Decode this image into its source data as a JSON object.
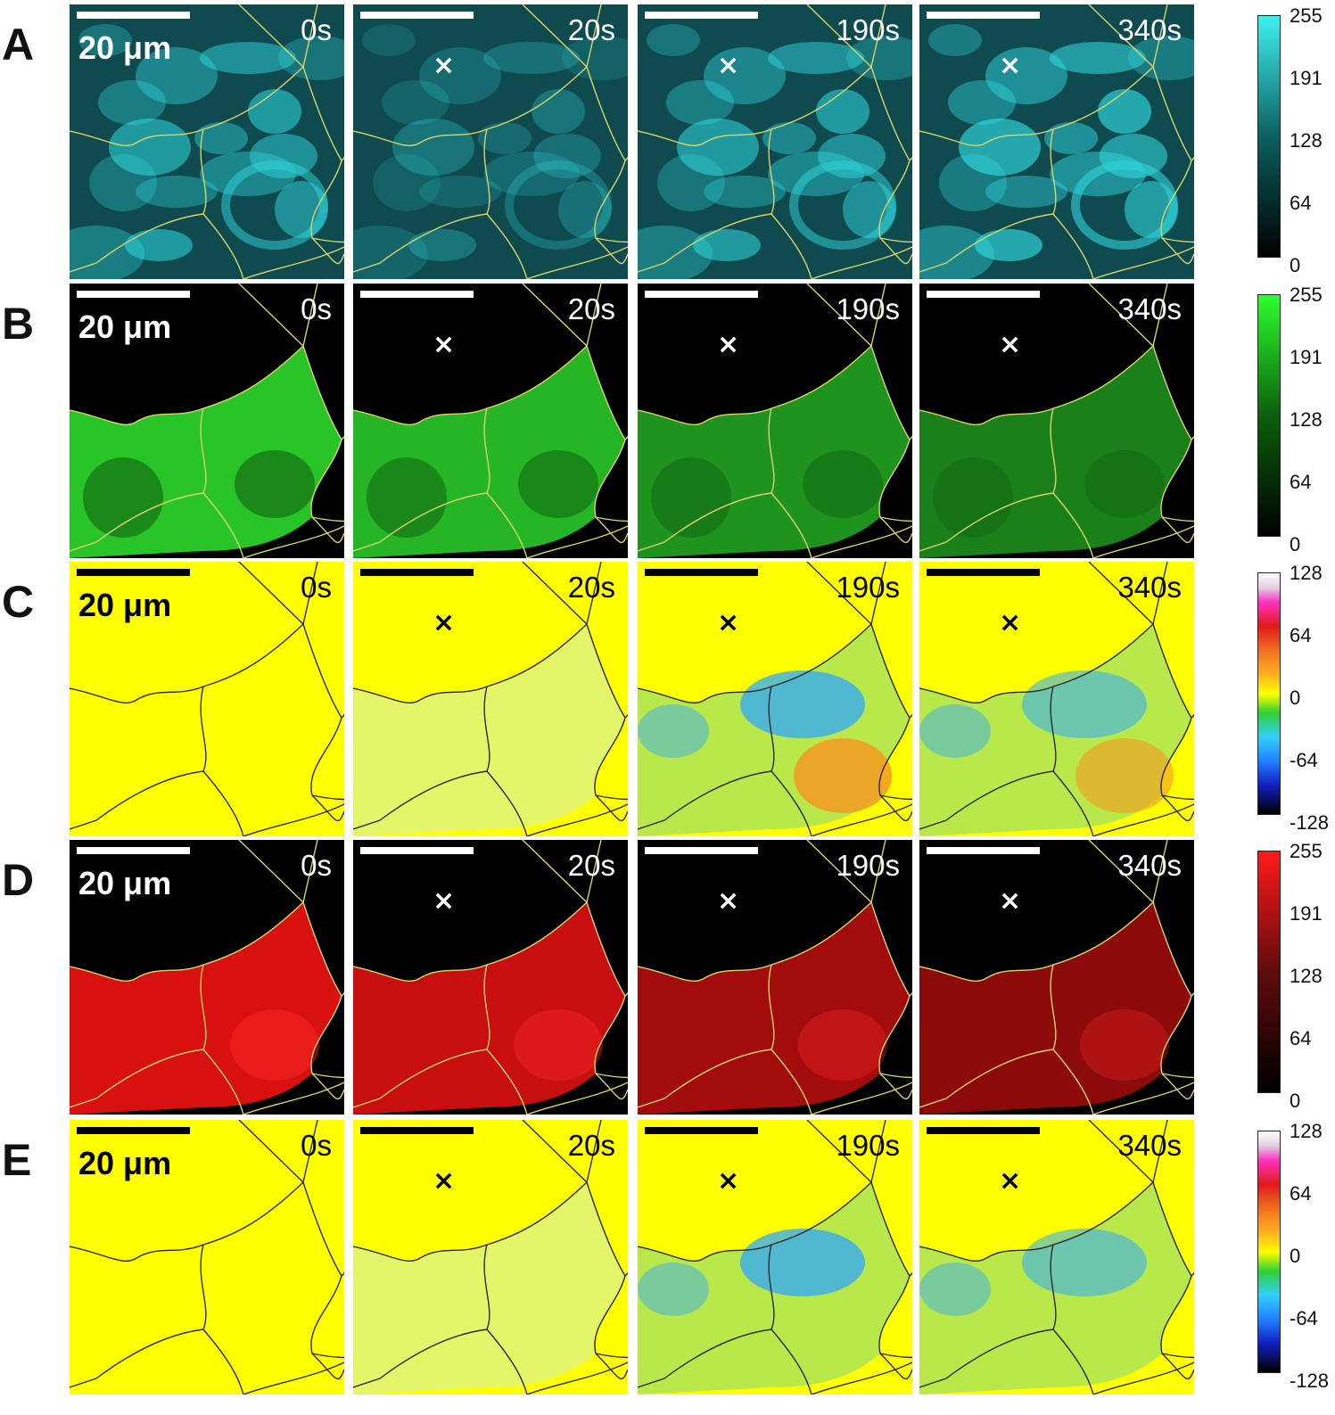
{
  "rows": [
    {
      "label": "A",
      "scale": "20 μm",
      "theme": "dark",
      "bg": "#0f4a4f",
      "signal": "#2fd6dc",
      "outline": "#d8d46a",
      "panels": [
        {
          "time": "0s",
          "marker": ""
        },
        {
          "time": "20s",
          "marker": "×"
        },
        {
          "time": "190s",
          "marker": "×"
        },
        {
          "time": "340s",
          "marker": "×"
        }
      ]
    },
    {
      "label": "B",
      "scale": "20 μm",
      "theme": "dark",
      "bg": "#000000",
      "signal": "#28c428",
      "outline": "#d8d46a",
      "panels": [
        {
          "time": "0s",
          "marker": ""
        },
        {
          "time": "20s",
          "marker": "×"
        },
        {
          "time": "190s",
          "marker": "×"
        },
        {
          "time": "340s",
          "marker": "×"
        }
      ]
    },
    {
      "label": "C",
      "scale": "20 μm",
      "theme": "light",
      "bg": "#ffff00",
      "signal": "#2ea8ff",
      "outline": "#2a2a2a",
      "panels": [
        {
          "time": "0s",
          "marker": ""
        },
        {
          "time": "20s",
          "marker": "×"
        },
        {
          "time": "190s",
          "marker": "×"
        },
        {
          "time": "340s",
          "marker": "×"
        }
      ]
    },
    {
      "label": "D",
      "scale": "20 μm",
      "theme": "dark",
      "bg": "#000000",
      "signal": "#d81010",
      "outline": "#d8d46a",
      "panels": [
        {
          "time": "0s",
          "marker": ""
        },
        {
          "time": "20s",
          "marker": "×"
        },
        {
          "time": "190s",
          "marker": "×"
        },
        {
          "time": "340s",
          "marker": "×"
        }
      ]
    },
    {
      "label": "E",
      "scale": "20 μm",
      "theme": "light",
      "bg": "#ffff00",
      "signal": "#2ea8ff",
      "outline": "#2a2a2a",
      "panels": [
        {
          "time": "0s",
          "marker": ""
        },
        {
          "time": "20s",
          "marker": "×"
        },
        {
          "time": "190s",
          "marker": "×"
        },
        {
          "time": "340s",
          "marker": "×"
        }
      ]
    }
  ],
  "colorbars": [
    {
      "name": "cyan",
      "ticks": [
        "255",
        "191",
        "128",
        "64",
        "0"
      ]
    },
    {
      "name": "green",
      "ticks": [
        "255",
        "191",
        "128",
        "64",
        "0"
      ]
    },
    {
      "name": "diverging-c",
      "ticks": [
        "128",
        "64",
        "0",
        "-64",
        "-128"
      ]
    },
    {
      "name": "red",
      "ticks": [
        "255",
        "191",
        "128",
        "64",
        "0"
      ]
    },
    {
      "name": "diverging-e",
      "ticks": [
        "128",
        "64",
        "0",
        "-64",
        "-128"
      ]
    }
  ]
}
